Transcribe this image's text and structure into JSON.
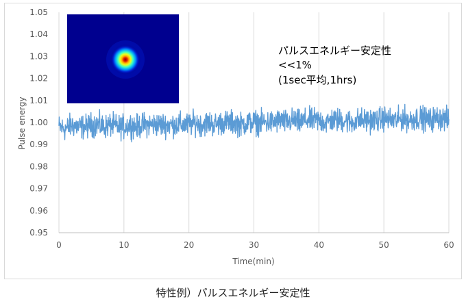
{
  "caption": "特性例）パルスエネルギー安定性",
  "colors": {
    "series": "#5b9bd5",
    "grid": "#d9d9d9",
    "axis_text": "#595959",
    "annotation_text": "#000000"
  },
  "chart_data": {
    "type": "line",
    "xlabel": "Time(min)",
    "ylabel": "Pulse energy",
    "xlim": [
      0,
      60
    ],
    "ylim": [
      0.95,
      1.05
    ],
    "x_ticks": [
      0,
      10,
      20,
      30,
      40,
      50,
      60
    ],
    "y_ticks": [
      0.95,
      0.96,
      0.97,
      0.98,
      0.99,
      1.0,
      1.01,
      1.02,
      1.03,
      1.04,
      1.05
    ],
    "x_tick_labels": [
      "0",
      "10",
      "20",
      "30",
      "40",
      "50",
      "60"
    ],
    "y_tick_labels": [
      "0.95",
      "0.96",
      "0.97",
      "0.98",
      "0.99",
      "1.00",
      "1.01",
      "1.02",
      "1.03",
      "1.04",
      "1.05"
    ],
    "grid": "vertical",
    "legend": "none",
    "annotation": [
      "パルスエネルギー安定性",
      "<<1%",
      "(1sec平均,1hrs)"
    ],
    "inset_image": "beam-profile",
    "series": [
      {
        "x": [
          0,
          1,
          2,
          3,
          4,
          5,
          6,
          7,
          8,
          9,
          10,
          11,
          12,
          13,
          14,
          15,
          16,
          17,
          18,
          19,
          20,
          21,
          22,
          23,
          24,
          25,
          26,
          27,
          28,
          29,
          30,
          31,
          32,
          33,
          34,
          35,
          36,
          37,
          38,
          39,
          40,
          41,
          42,
          43,
          44,
          45,
          46,
          47,
          48,
          49,
          50,
          51,
          52,
          53,
          54,
          55,
          56,
          57,
          58,
          59,
          60
        ],
        "values": [
          0.998,
          0.997,
          0.999,
          0.998,
          0.998,
          0.999,
          0.999,
          0.998,
          0.999,
          0.998,
          0.998,
          0.999,
          0.998,
          0.999,
          0.999,
          0.999,
          0.999,
          0.999,
          0.999,
          0.999,
          0.999,
          1.0,
          0.999,
          1.0,
          0.999,
          1.0,
          1.0,
          1.0,
          0.999,
          1.0,
          1.0,
          1.0,
          1.0,
          1.0,
          1.001,
          1.0,
          1.001,
          1.0,
          1.001,
          1.001,
          1.001,
          1.0,
          1.001,
          1.001,
          1.001,
          1.0,
          1.001,
          1.001,
          1.001,
          1.001,
          1.002,
          1.001,
          1.001,
          1.002,
          1.001,
          1.002,
          1.002,
          1.001,
          1.002,
          1.002,
          1.001
        ]
      }
    ]
  }
}
